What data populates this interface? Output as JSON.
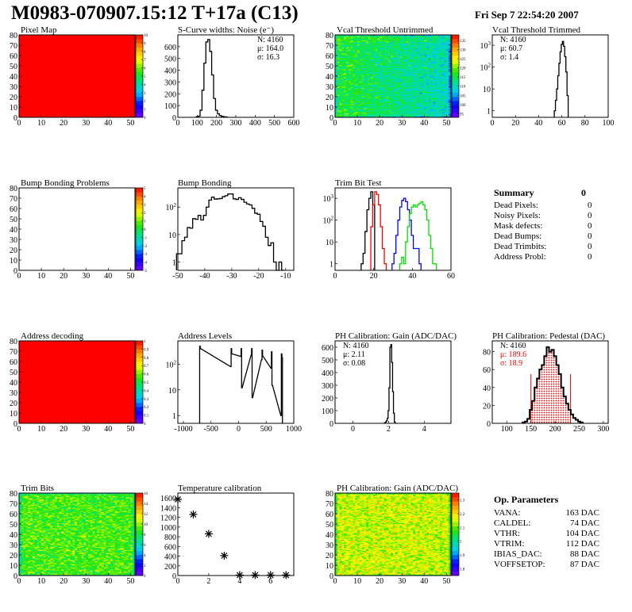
{
  "header": {
    "title": "M0983-070907.15:12 T+17a (C13)",
    "date": "Fri Sep  7 22:54:20 2007"
  },
  "summary": {
    "title": "Summary",
    "total": "0",
    "items": [
      {
        "label": "Dead Pixels:",
        "value": "0"
      },
      {
        "label": "Noisy Pixels:",
        "value": "0"
      },
      {
        "label": "Mask defects:",
        "value": "0"
      },
      {
        "label": "Dead Bumps:",
        "value": "0"
      },
      {
        "label": "Dead Trimbits:",
        "value": "0"
      },
      {
        "label": "Address Probl:",
        "value": "0"
      }
    ]
  },
  "op_parameters": {
    "title": "Op. Parameters",
    "items": [
      {
        "label": "VANA:",
        "value": "163 DAC"
      },
      {
        "label": "CALDEL:",
        "value": "74 DAC"
      },
      {
        "label": "VTHR:",
        "value": "104 DAC"
      },
      {
        "label": "VTRIM:",
        "value": "112 DAC"
      },
      {
        "label": "IBIAS_DAC:",
        "value": "88 DAC"
      },
      {
        "label": "VOFFSETOP:",
        "value": "87 DAC"
      }
    ]
  },
  "colors": {
    "hist_line": "#000000",
    "fit": "#ff0000",
    "trim_series": [
      "#000000",
      "#ff0000",
      "#0000ff",
      "#00e000"
    ]
  },
  "chart_data": [
    {
      "type": "heatmap",
      "title": "Pixel Map",
      "xlim": [
        0,
        52
      ],
      "ylim": [
        0,
        80
      ],
      "zlim": [
        0,
        10
      ],
      "uniform_value": 10,
      "xticks": [
        "0",
        "10",
        "20",
        "30",
        "40",
        "50"
      ],
      "yticks": [
        "0",
        "10",
        "20",
        "30",
        "40",
        "50",
        "60",
        "70",
        "80"
      ],
      "zticks": [
        "0",
        "1",
        "2",
        "3",
        "4",
        "5",
        "6",
        "7",
        "8",
        "9",
        "10"
      ]
    },
    {
      "type": "bar",
      "title": "S-Curve widths: Noise (e⁻)",
      "xlim": [
        0,
        600
      ],
      "ylim": [
        0,
        700
      ],
      "bin_width": 10,
      "xticks": [
        "0",
        "100",
        "200",
        "300",
        "400",
        "500",
        "600"
      ],
      "yticks": [
        "0",
        "100",
        "200",
        "300",
        "400",
        "500",
        "600"
      ],
      "stats": [
        "N: 4160",
        "μ: 164.0",
        "σ: 16.3"
      ],
      "bins": [
        [
          100,
          5
        ],
        [
          110,
          10
        ],
        [
          120,
          60
        ],
        [
          130,
          230
        ],
        [
          140,
          460
        ],
        [
          150,
          640
        ],
        [
          160,
          660
        ],
        [
          170,
          560
        ],
        [
          180,
          360
        ],
        [
          190,
          160
        ],
        [
          200,
          60
        ],
        [
          210,
          30
        ],
        [
          220,
          15
        ],
        [
          230,
          8
        ],
        [
          240,
          5
        ],
        [
          250,
          3
        ]
      ]
    },
    {
      "type": "heatmap",
      "title": "Vcal Threshold Untrimmed",
      "xlim": [
        0,
        52
      ],
      "ylim": [
        0,
        80
      ],
      "zlim": [
        93,
        138
      ],
      "mean_value": 113,
      "xticks": [
        "0",
        "10",
        "20",
        "30",
        "40",
        "50"
      ],
      "yticks": [
        "0",
        "10",
        "20",
        "30",
        "40",
        "50",
        "60",
        "70",
        "80"
      ],
      "zticks": [
        "95",
        "100",
        "105",
        "110",
        "115",
        "120",
        "125",
        "130",
        "135"
      ]
    },
    {
      "type": "bar",
      "title": "Vcal Threshold Trimmed",
      "xlim": [
        0,
        100
      ],
      "ylim": [
        0.5,
        3000
      ],
      "log_y": true,
      "bin_width": 1,
      "xticks": [
        "0",
        "20",
        "40",
        "60",
        "80",
        "100"
      ],
      "yticks": [
        "1",
        "10",
        "10^2",
        "10^3"
      ],
      "stats": [
        "N: 4160",
        "μ: 60.7",
        "σ:  1.4"
      ],
      "bins": [
        [
          54,
          1
        ],
        [
          55,
          3
        ],
        [
          56,
          10
        ],
        [
          57,
          40
        ],
        [
          58,
          150
        ],
        [
          59,
          500
        ],
        [
          60,
          1100
        ],
        [
          61,
          1500
        ],
        [
          62,
          900
        ],
        [
          63,
          300
        ],
        [
          64,
          60
        ],
        [
          65,
          5
        ]
      ]
    },
    {
      "type": "heatmap",
      "title": "Bump Bonding Problems",
      "xlim": [
        0,
        52
      ],
      "ylim": [
        0,
        80
      ],
      "zlim": [
        -5,
        5
      ],
      "empty": true,
      "xticks": [
        "0",
        "10",
        "20",
        "30",
        "40",
        "50"
      ],
      "yticks": [
        "0",
        "10",
        "20",
        "30",
        "40",
        "50",
        "60",
        "70",
        "80"
      ],
      "zticks": [
        "-5",
        "-4",
        "-3",
        "-2",
        "-1",
        "0",
        "1",
        "2",
        "3",
        "4",
        "5"
      ]
    },
    {
      "type": "bar",
      "title": "Bump Bonding",
      "xlim": [
        -50,
        -7
      ],
      "ylim": [
        0.5,
        500
      ],
      "log_y": true,
      "bin_width": 1,
      "xticks": [
        "-50",
        "-40",
        "-30",
        "-20",
        "-10"
      ],
      "yticks": [
        "1",
        "10",
        "10^2"
      ],
      "bins": [
        [
          -50,
          2
        ],
        [
          -49,
          2
        ],
        [
          -48,
          6
        ],
        [
          -47,
          8
        ],
        [
          -46,
          18
        ],
        [
          -45,
          17
        ],
        [
          -44,
          38
        ],
        [
          -43,
          36
        ],
        [
          -42,
          50
        ],
        [
          -41,
          34
        ],
        [
          -40,
          50
        ],
        [
          -39,
          100
        ],
        [
          -38,
          180
        ],
        [
          -37,
          230
        ],
        [
          -36,
          195
        ],
        [
          -35,
          200
        ],
        [
          -34,
          205
        ],
        [
          -33,
          240
        ],
        [
          -32,
          260
        ],
        [
          -31,
          300
        ],
        [
          -30,
          300
        ],
        [
          -29,
          200
        ],
        [
          -28,
          190
        ],
        [
          -27,
          220
        ],
        [
          -26,
          190
        ],
        [
          -25,
          150
        ],
        [
          -24,
          130
        ],
        [
          -23,
          120
        ],
        [
          -22,
          90
        ],
        [
          -21,
          60
        ],
        [
          -20,
          55
        ],
        [
          -19,
          30
        ],
        [
          -18,
          20
        ],
        [
          -17,
          8
        ],
        [
          -16,
          4
        ],
        [
          -15,
          5
        ],
        [
          -14,
          1
        ],
        [
          -13,
          0
        ],
        [
          -12,
          1
        ],
        [
          -11,
          0
        ]
      ]
    },
    {
      "type": "bar",
      "title": "Trim Bit Test",
      "xlim": [
        0,
        60
      ],
      "ylim": [
        0.5,
        3000
      ],
      "log_y": true,
      "bin_width": 1,
      "xticks": [
        "0",
        "20",
        "40",
        "60"
      ],
      "yticks": [
        "1",
        "10",
        "10^2",
        "10^3"
      ],
      "series": [
        {
          "bins": [
            [
              14,
              1
            ],
            [
              15,
              3
            ],
            [
              16,
              30
            ],
            [
              17,
              300
            ],
            [
              18,
              1000
            ],
            [
              19,
              2000
            ],
            [
              20,
              500
            ]
          ]
        },
        {
          "bins": [
            [
              19,
              50
            ],
            [
              20,
              500
            ],
            [
              21,
              2000
            ],
            [
              22,
              1500
            ],
            [
              23,
              500
            ],
            [
              24,
              50
            ],
            [
              25,
              5
            ],
            [
              26,
              1
            ]
          ]
        },
        {
          "bins": [
            [
              30,
              1
            ],
            [
              31,
              3
            ],
            [
              32,
              20
            ],
            [
              33,
              100
            ],
            [
              34,
              400
            ],
            [
              35,
              800
            ],
            [
              36,
              1000
            ],
            [
              37,
              700
            ],
            [
              38,
              300
            ],
            [
              39,
              100
            ],
            [
              40,
              20
            ],
            [
              41,
              5
            ],
            [
              42,
              5
            ],
            [
              43,
              5
            ],
            [
              44,
              1
            ]
          ]
        },
        {
          "bins": [
            [
              34,
              1
            ],
            [
              35,
              2
            ],
            [
              36,
              1
            ],
            [
              37,
              10
            ],
            [
              38,
              50
            ],
            [
              39,
              200
            ],
            [
              40,
              400
            ],
            [
              41,
              500
            ],
            [
              42,
              400
            ],
            [
              43,
              500
            ],
            [
              44,
              600
            ],
            [
              45,
              700
            ],
            [
              46,
              500
            ],
            [
              47,
              300
            ],
            [
              48,
              100
            ],
            [
              49,
              20
            ],
            [
              50,
              5
            ],
            [
              51,
              1
            ],
            [
              52,
              1
            ]
          ]
        }
      ]
    },
    null,
    {
      "type": "heatmap",
      "title": "Address decoding",
      "xlim": [
        0,
        52
      ],
      "ylim": [
        0,
        80
      ],
      "zlim": [
        0,
        1
      ],
      "uniform_value": 1,
      "xticks": [
        "0",
        "10",
        "20",
        "30",
        "40",
        "50"
      ],
      "yticks": [
        "0",
        "10",
        "20",
        "30",
        "40",
        "50",
        "60",
        "70",
        "80"
      ],
      "zticks": [
        "0",
        "0.1",
        "0.2",
        "0.3",
        "0.4",
        "0.5",
        "0.6",
        "0.7",
        "0.8",
        "0.9",
        "1"
      ]
    },
    {
      "type": "bar",
      "title": "Address Levels",
      "xlim": [
        -1100,
        1000
      ],
      "ylim": [
        0.5,
        800
      ],
      "log_y": true,
      "bin_width": 10,
      "xticks": [
        "-1000",
        "-500",
        "0",
        "500",
        "1000"
      ],
      "yticks": [
        "1",
        "10",
        "10^2"
      ],
      "bins": [
        [
          -700,
          500
        ],
        [
          -690,
          400
        ],
        [
          -140,
          80
        ],
        [
          -130,
          400
        ],
        [
          -120,
          250
        ],
        [
          40,
          200
        ],
        [
          50,
          400
        ],
        [
          60,
          12
        ],
        [
          230,
          220
        ],
        [
          240,
          400
        ],
        [
          250,
          5
        ],
        [
          420,
          150
        ],
        [
          430,
          350
        ],
        [
          440,
          200
        ],
        [
          590,
          70
        ],
        [
          600,
          300
        ],
        [
          610,
          15
        ],
        [
          770,
          1
        ],
        [
          780,
          250
        ],
        [
          790,
          180
        ]
      ]
    },
    {
      "type": "bar",
      "title": "PH Calibration: Gain (ADC/DAC)",
      "xlim": [
        -1,
        5.5
      ],
      "ylim": [
        0,
        650
      ],
      "bin_width": 0.05,
      "xticks": [
        "0",
        "2",
        "4"
      ],
      "yticks": [
        "0",
        "100",
        "200",
        "300",
        "400",
        "500",
        "600"
      ],
      "stats": [
        "N: 4160",
        "μ: 2.11",
        "σ: 0.08"
      ],
      "bins": [
        [
          1.8,
          5
        ],
        [
          1.85,
          10
        ],
        [
          1.9,
          20
        ],
        [
          1.95,
          40
        ],
        [
          2.0,
          100
        ],
        [
          2.05,
          280
        ],
        [
          2.1,
          600
        ],
        [
          2.15,
          620
        ],
        [
          2.2,
          480
        ],
        [
          2.25,
          250
        ],
        [
          2.3,
          80
        ],
        [
          2.35,
          10
        ]
      ]
    },
    {
      "type": "bar",
      "title": "PH Calibration: Pedestal (DAC)",
      "xlim": [
        70,
        310
      ],
      "ylim": [
        0,
        92
      ],
      "bin_width": 5,
      "xticks": [
        "100",
        "150",
        "200",
        "250",
        "300"
      ],
      "yticks": [
        "0",
        "20",
        "40",
        "60",
        "80"
      ],
      "stats": [
        "N: 4160",
        "μ: 189.6",
        "σ: 18.9"
      ],
      "fit_range": [
        150,
        232
      ],
      "bins": [
        [
          135,
          1
        ],
        [
          140,
          2
        ],
        [
          145,
          5
        ],
        [
          150,
          15
        ],
        [
          155,
          25
        ],
        [
          160,
          40
        ],
        [
          165,
          50
        ],
        [
          170,
          60
        ],
        [
          175,
          65
        ],
        [
          180,
          75
        ],
        [
          185,
          85
        ],
        [
          190,
          80
        ],
        [
          195,
          82
        ],
        [
          200,
          75
        ],
        [
          205,
          65
        ],
        [
          210,
          55
        ],
        [
          215,
          40
        ],
        [
          220,
          30
        ],
        [
          225,
          22
        ],
        [
          230,
          15
        ],
        [
          235,
          10
        ],
        [
          240,
          6
        ],
        [
          245,
          4
        ],
        [
          250,
          2
        ],
        [
          255,
          1
        ]
      ]
    },
    {
      "type": "heatmap",
      "title": "Trim Bits",
      "xlim": [
        0,
        52
      ],
      "ylim": [
        0,
        80
      ],
      "zlim": [
        0,
        16
      ],
      "mean_value": 9,
      "xticks": [
        "0",
        "10",
        "20",
        "30",
        "40",
        "50"
      ],
      "yticks": [
        "0",
        "10",
        "20",
        "30",
        "40",
        "50",
        "60",
        "70",
        "80"
      ],
      "zticks": [
        "0",
        "2",
        "4",
        "6",
        "8",
        "10",
        "12",
        "14",
        "16"
      ]
    },
    {
      "type": "scatter",
      "title": "Temperature calibration",
      "xlim": [
        0,
        7.5
      ],
      "ylim": [
        0,
        1700
      ],
      "marker": "star",
      "xticks": [
        "0",
        "2",
        "4",
        "6"
      ],
      "yticks": [
        "0",
        "200",
        "400",
        "600",
        "800",
        "1000",
        "1200",
        "1400",
        "1600"
      ],
      "points": [
        [
          0,
          1570
        ],
        [
          1,
          1260
        ],
        [
          2,
          860
        ],
        [
          3,
          410
        ],
        [
          4,
          10
        ],
        [
          5,
          10
        ],
        [
          6,
          10
        ],
        [
          7,
          10
        ]
      ]
    },
    {
      "type": "heatmap",
      "title": "PH Calibration: Gain (ADC/DAC)",
      "xlim": [
        0,
        52
      ],
      "ylim": [
        0,
        80
      ],
      "zlim": [
        1.75,
        2.35
      ],
      "mean_value": 2.15,
      "xticks": [
        "0",
        "10",
        "20",
        "30",
        "40",
        "50"
      ],
      "yticks": [
        "0",
        "10",
        "20",
        "30",
        "40",
        "50",
        "60",
        "70",
        "80"
      ],
      "zticks": [
        "1.8",
        "1.9",
        "2",
        "2.1",
        "2.2",
        "2.3"
      ]
    }
  ]
}
